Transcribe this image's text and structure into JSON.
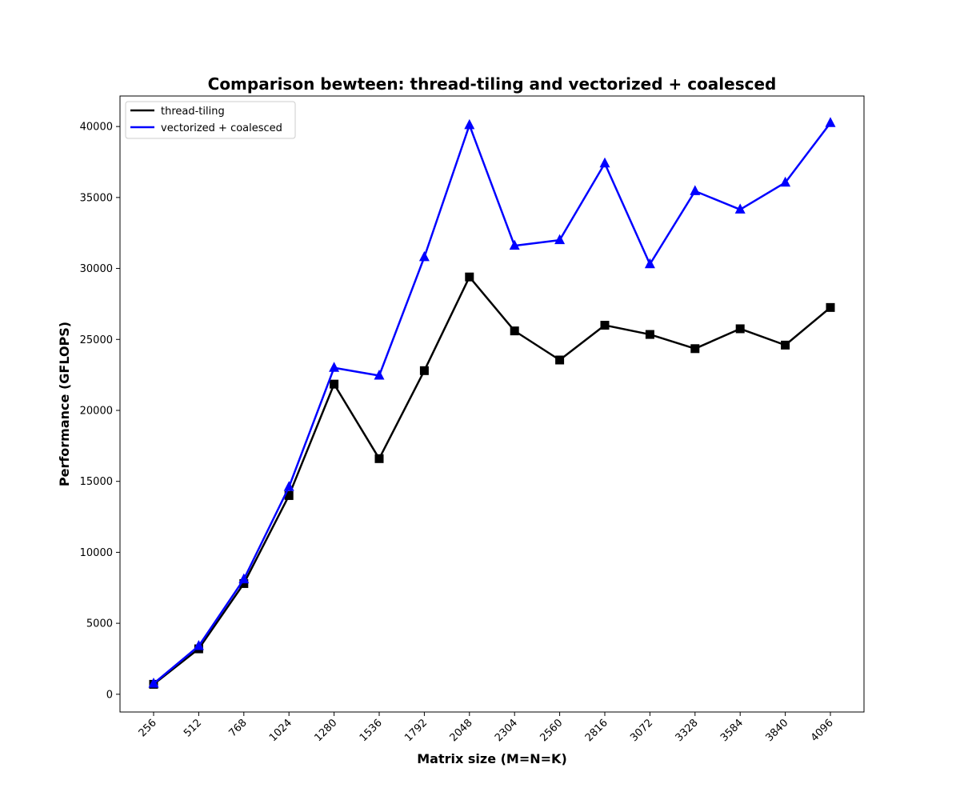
{
  "chart_data": {
    "type": "line",
    "title": "Comparison bewteen: thread-tiling and vectorized + coalesced",
    "xlabel": "Matrix size (M=N=K)",
    "ylabel": "Performance (GFLOPS)",
    "categories": [
      "256",
      "512",
      "768",
      "1024",
      "1280",
      "1536",
      "1792",
      "2048",
      "2304",
      "2560",
      "2816",
      "3072",
      "3328",
      "3584",
      "3840",
      "4096"
    ],
    "y_ticks": [
      "0",
      "5000",
      "10000",
      "15000",
      "20000",
      "25000",
      "30000",
      "35000",
      "40000"
    ],
    "ylim": [
      -1250,
      42150
    ],
    "grid": false,
    "legend_position": "top-left",
    "series": [
      {
        "name": "thread-tiling",
        "color": "#000000",
        "marker": "square",
        "values": [
          700,
          3200,
          7800,
          14000,
          21850,
          16600,
          22800,
          29400,
          25600,
          23550,
          26000,
          25350,
          24350,
          25750,
          24600,
          27250
        ]
      },
      {
        "name": "vectorized + coalesced",
        "color": "#0000ff",
        "marker": "triangle",
        "values": [
          750,
          3400,
          8100,
          14600,
          23000,
          22450,
          30800,
          40100,
          31600,
          32000,
          37400,
          30300,
          35450,
          34150,
          36050,
          40250
        ]
      }
    ]
  }
}
